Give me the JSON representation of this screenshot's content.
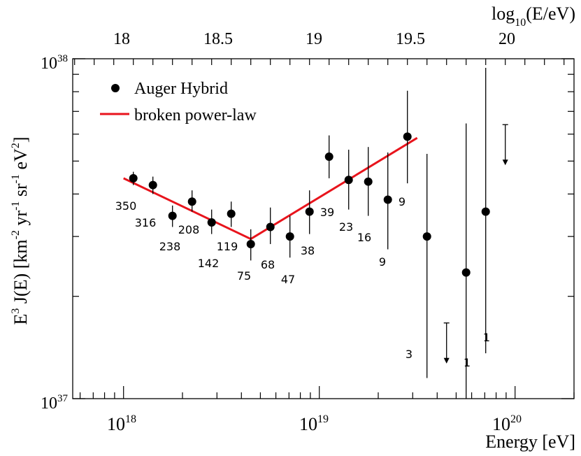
{
  "chart_data": {
    "type": "scatter",
    "x_axis": {
      "label": "Energy [eV]",
      "scale": "log",
      "range_eV": [
        5.5e+17,
        2e+20
      ],
      "ticks": [
        {
          "label_base": "10",
          "label_exp": "18",
          "value": 1e+18
        },
        {
          "label_base": "10",
          "label_exp": "19",
          "value": 1e+19
        },
        {
          "label_base": "10",
          "label_exp": "20",
          "value": 1e+20
        }
      ]
    },
    "top_axis": {
      "label_prefix": "log",
      "label_sub": "10",
      "label_suffix": "(E/eV)",
      "ticks": [
        {
          "label": "18",
          "value": 18
        },
        {
          "label": "18.5",
          "value": 18.5
        },
        {
          "label": "19",
          "value": 19
        },
        {
          "label": "19.5",
          "value": 19.5
        },
        {
          "label": "20",
          "value": 20
        }
      ]
    },
    "y_axis": {
      "label_parts": [
        "E",
        "3",
        " J(E) [km",
        "-2",
        " yr",
        "-1",
        " sr",
        "-1",
        " eV",
        "2",
        "]"
      ],
      "scale": "log",
      "range": [
        1e+37,
        1e+38
      ],
      "ticks": [
        {
          "label_base": "10",
          "label_exp": "37",
          "value": 1e+37
        },
        {
          "label_base": "10",
          "label_exp": "38",
          "value": 1e+38
        }
      ]
    },
    "legend": {
      "position": "top-left",
      "entries": [
        {
          "label": "Auger Hybrid",
          "marker": "circle",
          "color": "#000000"
        },
        {
          "label": "broken power-law",
          "marker": "line",
          "color": "#e8141c"
        }
      ]
    },
    "series": [
      {
        "name": "Auger Hybrid",
        "points": [
          {
            "lgE": 18.05,
            "y": 4.45e+37,
            "ylo": 4.25e+37,
            "yhi": 4.65e+37,
            "n": "350"
          },
          {
            "lgE": 18.15,
            "y": 4.25e+37,
            "ylo": 4e+37,
            "yhi": 4.5e+37,
            "n": "316"
          },
          {
            "lgE": 18.25,
            "y": 3.45e+37,
            "ylo": 3.2e+37,
            "yhi": 3.7e+37,
            "n": "238"
          },
          {
            "lgE": 18.35,
            "y": 3.8e+37,
            "ylo": 3.55e+37,
            "yhi": 4.1e+37,
            "n": "208"
          },
          {
            "lgE": 18.45,
            "y": 3.3e+37,
            "ylo": 3.05e+37,
            "yhi": 3.6e+37,
            "n": "142"
          },
          {
            "lgE": 18.55,
            "y": 3.5e+37,
            "ylo": 3.2e+37,
            "yhi": 3.8e+37,
            "n": "119"
          },
          {
            "lgE": 18.65,
            "y": 2.85e+37,
            "ylo": 2.55e+37,
            "yhi": 3.15e+37,
            "n": "75"
          },
          {
            "lgE": 18.75,
            "y": 3.2e+37,
            "ylo": 2.85e+37,
            "yhi": 3.65e+37,
            "n": "68"
          },
          {
            "lgE": 18.85,
            "y": 3e+37,
            "ylo": 2.6e+37,
            "yhi": 3.45e+37,
            "n": "47"
          },
          {
            "lgE": 18.95,
            "y": 3.55e+37,
            "ylo": 3.05e+37,
            "yhi": 4.1e+37,
            "n": "38"
          },
          {
            "lgE": 19.05,
            "y": 5.15e+37,
            "ylo": 4.45e+37,
            "yhi": 5.95e+37,
            "n": "39"
          },
          {
            "lgE": 19.15,
            "y": 4.4e+37,
            "ylo": 3.6e+37,
            "yhi": 5.4e+37,
            "n": "23"
          },
          {
            "lgE": 19.25,
            "y": 4.35e+37,
            "ylo": 3.45e+37,
            "yhi": 5.5e+37,
            "n": "16"
          },
          {
            "lgE": 19.35,
            "y": 3.85e+37,
            "ylo": 2.75e+37,
            "yhi": 5.3e+37,
            "n": "9"
          },
          {
            "lgE": 19.45,
            "y": 5.9e+37,
            "ylo": 4.3e+37,
            "yhi": 8.05e+37,
            "n": "9"
          },
          {
            "lgE": 19.55,
            "y": 3e+37,
            "ylo": 1.15e+37,
            "yhi": 5.25e+37,
            "n": "3"
          },
          {
            "lgE": 19.75,
            "y": 2.35e+37,
            "ylo": 9e+36,
            "yhi": 6.45e+37,
            "n": "1"
          },
          {
            "lgE": 19.85,
            "y": 3.55e+37,
            "ylo": 1.36e+37,
            "yhi": 9.4e+37,
            "n": "1"
          }
        ],
        "upper_limits": [
          {
            "lgE": 19.65,
            "y": 1.67e+37
          },
          {
            "lgE": 19.95,
            "y": 6.4e+37
          }
        ]
      },
      {
        "name": "broken power-law",
        "type": "line",
        "points": [
          {
            "lgE": 18.0,
            "y": 4.45e+37
          },
          {
            "lgE": 18.65,
            "y": 2.95e+37
          },
          {
            "lgE": 19.5,
            "y": 5.85e+37
          }
        ]
      }
    ]
  }
}
